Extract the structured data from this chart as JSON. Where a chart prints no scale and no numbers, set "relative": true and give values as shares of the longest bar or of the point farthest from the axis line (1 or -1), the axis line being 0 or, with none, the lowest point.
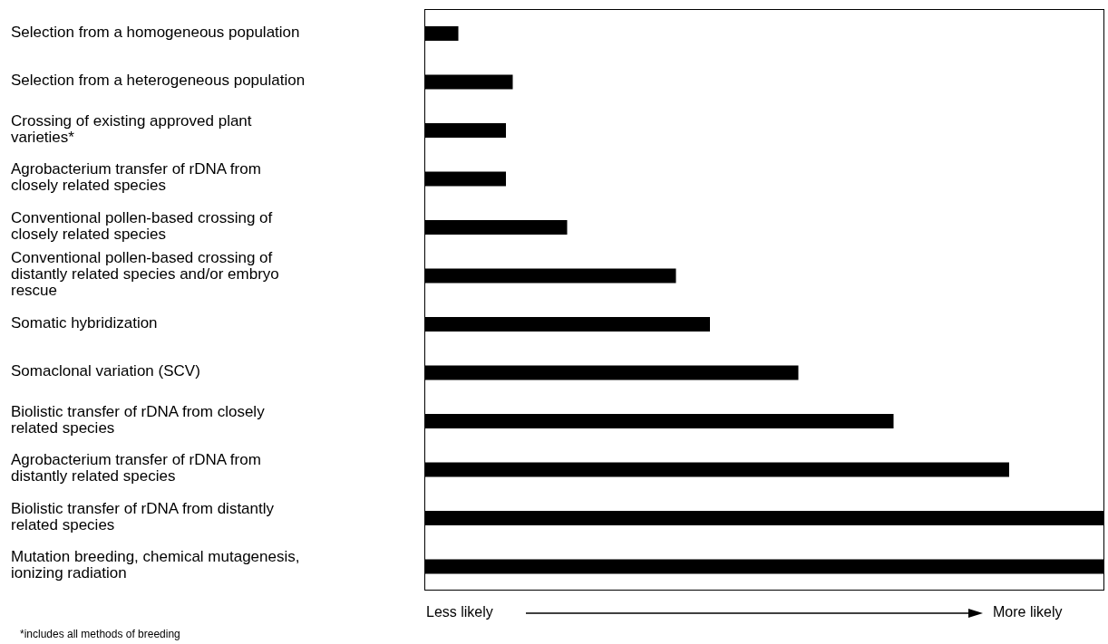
{
  "chart_data": {
    "type": "bar",
    "orientation": "horizontal",
    "relative": true,
    "color": "#000000",
    "categories": [
      "Selection from a homogeneous population",
      "Selection from a heterogeneous population",
      "Crossing of existing approved plant varieties*",
      "Agrobacterium transfer of rDNA from closely related species",
      "Conventional pollen-based crossing of closely related species",
      "Conventional pollen-based crossing of distantly related species and/or embryo rescue",
      "Somatic hybridization",
      "Somaclonal variation (SCV)",
      "Biolistic transfer of rDNA from closely related species",
      "Agrobacterium transfer of rDNA from distantly related species",
      "Biolistic transfer of rDNA from distantly related species",
      "Mutation breeding, chemical mutagenesis, ionizing radiation"
    ],
    "values": [
      0.05,
      0.13,
      0.12,
      0.12,
      0.21,
      0.37,
      0.42,
      0.55,
      0.69,
      0.86,
      1,
      1
    ],
    "annotations": [
      "Less likely",
      "More likely",
      "*includes all methods of breeding"
    ]
  }
}
